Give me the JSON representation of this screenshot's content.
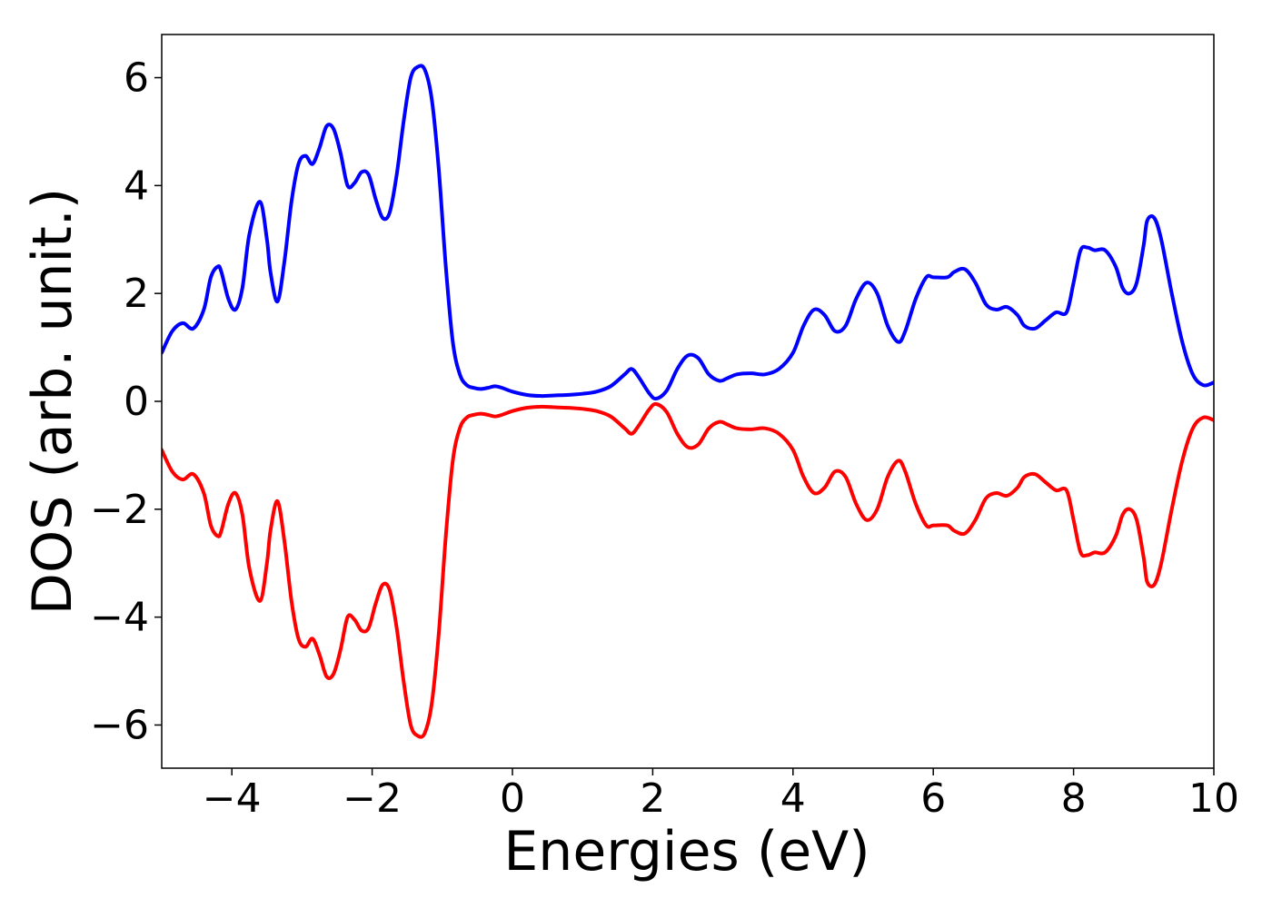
{
  "chart_data": {
    "type": "line",
    "title": "",
    "xlabel": "Energies (eV)",
    "ylabel": "DOS (arb. unit.)",
    "xlim": [
      -5,
      10
    ],
    "ylim": [
      -6.8,
      6.8
    ],
    "xticks": [
      -4,
      -2,
      0,
      2,
      4,
      6,
      8,
      10
    ],
    "xtick_labels": [
      "−4",
      "−2",
      "0",
      "2",
      "4",
      "6",
      "8",
      "10"
    ],
    "yticks": [
      -6,
      -4,
      -2,
      0,
      2,
      4,
      6
    ],
    "ytick_labels": [
      "−6",
      "−4",
      "−2",
      "0",
      "2",
      "4",
      "6"
    ],
    "grid": false,
    "legend": "none",
    "series": [
      {
        "color": "#0000ff",
        "x": [
          -5.0,
          -4.85,
          -4.7,
          -4.55,
          -4.4,
          -4.3,
          -4.2,
          -4.15,
          -4.05,
          -3.95,
          -3.85,
          -3.75,
          -3.6,
          -3.5,
          -3.45,
          -3.35,
          -3.25,
          -3.15,
          -3.05,
          -2.95,
          -2.85,
          -2.75,
          -2.65,
          -2.55,
          -2.45,
          -2.35,
          -2.25,
          -2.15,
          -2.05,
          -1.95,
          -1.85,
          -1.75,
          -1.65,
          -1.55,
          -1.45,
          -1.35,
          -1.25,
          -1.15,
          -1.05,
          -0.95,
          -0.85,
          -0.75,
          -0.65,
          -0.55,
          -0.45,
          -0.35,
          -0.25,
          -0.15,
          0.0,
          0.2,
          0.4,
          0.6,
          0.8,
          1.0,
          1.2,
          1.4,
          1.6,
          1.7,
          1.8,
          1.95,
          2.05,
          2.2,
          2.35,
          2.5,
          2.65,
          2.8,
          2.95,
          3.05,
          3.2,
          3.4,
          3.6,
          3.8,
          4.0,
          4.15,
          4.3,
          4.45,
          4.6,
          4.75,
          4.9,
          5.05,
          5.2,
          5.35,
          5.5,
          5.6,
          5.75,
          5.9,
          6.0,
          6.2,
          6.3,
          6.45,
          6.6,
          6.75,
          6.9,
          7.05,
          7.2,
          7.3,
          7.45,
          7.6,
          7.75,
          7.9,
          8.0,
          8.1,
          8.2,
          8.3,
          8.45,
          8.6,
          8.7,
          8.8,
          8.9,
          9.0,
          9.05,
          9.15,
          9.25,
          9.4,
          9.55,
          9.7,
          9.85,
          10.0
        ],
        "y": [
          0.9,
          1.3,
          1.45,
          1.35,
          1.7,
          2.3,
          2.5,
          2.4,
          1.9,
          1.7,
          2.1,
          3.1,
          3.7,
          3.0,
          2.4,
          1.85,
          2.6,
          3.7,
          4.4,
          4.55,
          4.4,
          4.7,
          5.1,
          5.05,
          4.6,
          4.0,
          4.05,
          4.25,
          4.2,
          3.75,
          3.4,
          3.5,
          4.2,
          5.2,
          6.0,
          6.2,
          6.15,
          5.6,
          4.3,
          2.5,
          1.1,
          0.5,
          0.3,
          0.25,
          0.23,
          0.25,
          0.28,
          0.25,
          0.18,
          0.12,
          0.1,
          0.11,
          0.12,
          0.14,
          0.18,
          0.28,
          0.5,
          0.6,
          0.45,
          0.15,
          0.05,
          0.2,
          0.6,
          0.85,
          0.8,
          0.5,
          0.38,
          0.42,
          0.5,
          0.52,
          0.5,
          0.6,
          0.9,
          1.4,
          1.7,
          1.6,
          1.3,
          1.4,
          1.9,
          2.2,
          2.0,
          1.4,
          1.1,
          1.3,
          1.9,
          2.3,
          2.3,
          2.3,
          2.4,
          2.45,
          2.2,
          1.8,
          1.7,
          1.75,
          1.6,
          1.4,
          1.35,
          1.5,
          1.65,
          1.65,
          2.2,
          2.8,
          2.85,
          2.8,
          2.8,
          2.5,
          2.1,
          2.0,
          2.2,
          2.9,
          3.35,
          3.4,
          3.0,
          2.0,
          1.1,
          0.5,
          0.3,
          0.35
        ]
      },
      {
        "color": "#ff0000",
        "x": [
          -5.0,
          -4.85,
          -4.7,
          -4.55,
          -4.4,
          -4.3,
          -4.2,
          -4.15,
          -4.05,
          -3.95,
          -3.85,
          -3.75,
          -3.6,
          -3.5,
          -3.45,
          -3.35,
          -3.25,
          -3.15,
          -3.05,
          -2.95,
          -2.85,
          -2.75,
          -2.65,
          -2.55,
          -2.45,
          -2.35,
          -2.25,
          -2.15,
          -2.05,
          -1.95,
          -1.85,
          -1.75,
          -1.65,
          -1.55,
          -1.45,
          -1.35,
          -1.25,
          -1.15,
          -1.05,
          -0.95,
          -0.85,
          -0.75,
          -0.65,
          -0.55,
          -0.45,
          -0.35,
          -0.25,
          -0.15,
          0.0,
          0.2,
          0.4,
          0.6,
          0.8,
          1.0,
          1.2,
          1.4,
          1.6,
          1.7,
          1.8,
          1.95,
          2.05,
          2.2,
          2.35,
          2.5,
          2.65,
          2.8,
          2.95,
          3.05,
          3.2,
          3.4,
          3.6,
          3.8,
          4.0,
          4.15,
          4.3,
          4.45,
          4.6,
          4.75,
          4.9,
          5.05,
          5.2,
          5.35,
          5.5,
          5.6,
          5.75,
          5.9,
          6.0,
          6.2,
          6.3,
          6.45,
          6.6,
          6.75,
          6.9,
          7.05,
          7.2,
          7.3,
          7.45,
          7.6,
          7.75,
          7.9,
          8.0,
          8.1,
          8.2,
          8.3,
          8.45,
          8.6,
          8.7,
          8.8,
          8.9,
          9.0,
          9.05,
          9.15,
          9.25,
          9.4,
          9.55,
          9.7,
          9.85,
          10.0
        ],
        "y": [
          -0.9,
          -1.3,
          -1.45,
          -1.35,
          -1.7,
          -2.3,
          -2.5,
          -2.4,
          -1.9,
          -1.7,
          -2.1,
          -3.1,
          -3.7,
          -3.0,
          -2.4,
          -1.85,
          -2.6,
          -3.7,
          -4.4,
          -4.55,
          -4.4,
          -4.7,
          -5.1,
          -5.05,
          -4.6,
          -4.0,
          -4.05,
          -4.25,
          -4.2,
          -3.75,
          -3.4,
          -3.5,
          -4.2,
          -5.2,
          -6.0,
          -6.2,
          -6.15,
          -5.6,
          -4.3,
          -2.5,
          -1.1,
          -0.5,
          -0.3,
          -0.25,
          -0.23,
          -0.25,
          -0.28,
          -0.25,
          -0.18,
          -0.12,
          -0.1,
          -0.11,
          -0.12,
          -0.14,
          -0.18,
          -0.28,
          -0.5,
          -0.6,
          -0.45,
          -0.15,
          -0.05,
          -0.2,
          -0.6,
          -0.85,
          -0.8,
          -0.5,
          -0.38,
          -0.42,
          -0.5,
          -0.52,
          -0.5,
          -0.6,
          -0.9,
          -1.4,
          -1.7,
          -1.6,
          -1.3,
          -1.4,
          -1.9,
          -2.2,
          -2.0,
          -1.4,
          -1.1,
          -1.3,
          -1.9,
          -2.3,
          -2.3,
          -2.3,
          -2.4,
          -2.45,
          -2.2,
          -1.8,
          -1.7,
          -1.75,
          -1.6,
          -1.4,
          -1.35,
          -1.5,
          -1.65,
          -1.65,
          -2.2,
          -2.8,
          -2.85,
          -2.8,
          -2.8,
          -2.5,
          -2.1,
          -2.0,
          -2.2,
          -2.9,
          -3.35,
          -3.4,
          -3.0,
          -2.0,
          -1.1,
          -0.5,
          -0.3,
          -0.35
        ]
      }
    ]
  }
}
